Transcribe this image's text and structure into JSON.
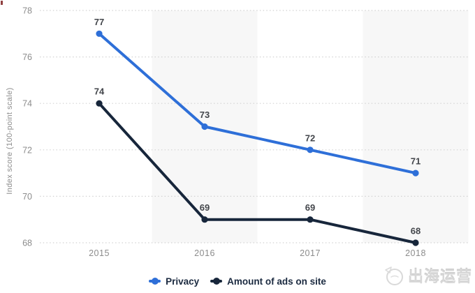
{
  "watermark": {
    "text": "出海运营",
    "icon": "sketch-circle-plane-icon",
    "color": "#d7d7d7"
  },
  "colors": {
    "privacy_line": "#2e6fd8",
    "ads_line": "#17263b",
    "grid_line": "#d2d2d2",
    "band_fill": "#f7f7f7",
    "tick_label": "#8c8c8c",
    "data_label": "#43464b",
    "legend_text": "#1b2a40"
  },
  "chart_data": {
    "type": "line",
    "title": "",
    "xlabel": "",
    "ylabel": "Index score (100-point scale)",
    "categories": [
      "2015",
      "2016",
      "2017",
      "2018"
    ],
    "series": [
      {
        "name": "Privacy",
        "color": "#2e6fd8",
        "values": [
          77,
          73,
          72,
          71
        ]
      },
      {
        "name": "Amount of ads on site",
        "color": "#17263b",
        "values": [
          74,
          69,
          69,
          68
        ]
      }
    ],
    "data_labels_shown": true,
    "yticks": [
      68,
      70,
      72,
      74,
      76,
      78
    ],
    "ylim": [
      68,
      78
    ],
    "grid": "horizontal dotted",
    "plot_bands": {
      "style": "alternating vertical",
      "band_category_indices": [
        1,
        3
      ]
    },
    "legend_position": "bottom-center",
    "marker": "filled-circle"
  }
}
